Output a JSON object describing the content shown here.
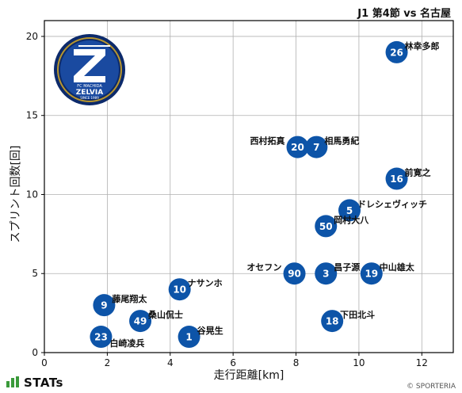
{
  "header": {
    "title": "J1 第4節 vs 名古屋"
  },
  "footer": {
    "brand": "STATs",
    "copyright": "© SPORTERIA"
  },
  "logo": {
    "name": "FC MACHIDA ZELVIA crest",
    "text_top": "FC MACHIDA",
    "text_main": "ZELVIA",
    "text_bottom": "SINCE 1989",
    "colors": {
      "outer": "#0c2a6b",
      "ring": "#b8962e",
      "inner": "#1a4aa0",
      "emblem": "#ffffff"
    }
  },
  "colors": {
    "marker": "#0d54a8",
    "marker_text": "#ffffff",
    "grid": "#b0b0b0",
    "axis": "#000000"
  },
  "chart_data": {
    "type": "scatter",
    "title": "J1 第4節 vs 名古屋",
    "xlabel": "走行距離[km]",
    "ylabel": "スプリント回数[回]",
    "xlim": [
      0,
      13
    ],
    "ylim": [
      0,
      21
    ],
    "xticks": [
      0,
      2,
      4,
      6,
      8,
      10,
      12
    ],
    "yticks": [
      0,
      5,
      10,
      15,
      20
    ],
    "grid": true,
    "points": [
      {
        "number": "26",
        "name": "林幸多郎",
        "x": 11.2,
        "y": 19,
        "label_pos": "right"
      },
      {
        "number": "20",
        "name": "西村拓真",
        "x": 8.05,
        "y": 13,
        "label_pos": "left"
      },
      {
        "number": "7",
        "name": "相馬勇紀",
        "x": 8.65,
        "y": 13,
        "label_pos": "right"
      },
      {
        "number": "16",
        "name": "前寛之",
        "x": 11.2,
        "y": 11,
        "label_pos": "right"
      },
      {
        "number": "5",
        "name": "ドレシェヴィッチ",
        "x": 9.7,
        "y": 9,
        "label_pos": "right"
      },
      {
        "number": "50",
        "name": "岡村大八",
        "x": 8.95,
        "y": 8,
        "label_pos": "right"
      },
      {
        "number": "90",
        "name": "オセフン",
        "x": 7.95,
        "y": 5,
        "label_pos": "left"
      },
      {
        "number": "3",
        "name": "昌子源",
        "x": 8.95,
        "y": 5,
        "label_pos": "right"
      },
      {
        "number": "19",
        "name": "中山雄太",
        "x": 10.4,
        "y": 5,
        "label_pos": "right"
      },
      {
        "number": "10",
        "name": "ナサンホ",
        "x": 4.3,
        "y": 4,
        "label_pos": "right"
      },
      {
        "number": "9",
        "name": "藤尾翔太",
        "x": 1.9,
        "y": 3,
        "label_pos": "right"
      },
      {
        "number": "49",
        "name": "桑山侃士",
        "x": 3.05,
        "y": 2,
        "label_pos": "right"
      },
      {
        "number": "18",
        "name": "下田北斗",
        "x": 9.15,
        "y": 2,
        "label_pos": "right"
      },
      {
        "number": "23",
        "name": "白崎凌兵",
        "x": 1.8,
        "y": 1,
        "label_pos": "right-below"
      },
      {
        "number": "1",
        "name": "谷晃生",
        "x": 4.6,
        "y": 1,
        "label_pos": "right"
      }
    ]
  }
}
